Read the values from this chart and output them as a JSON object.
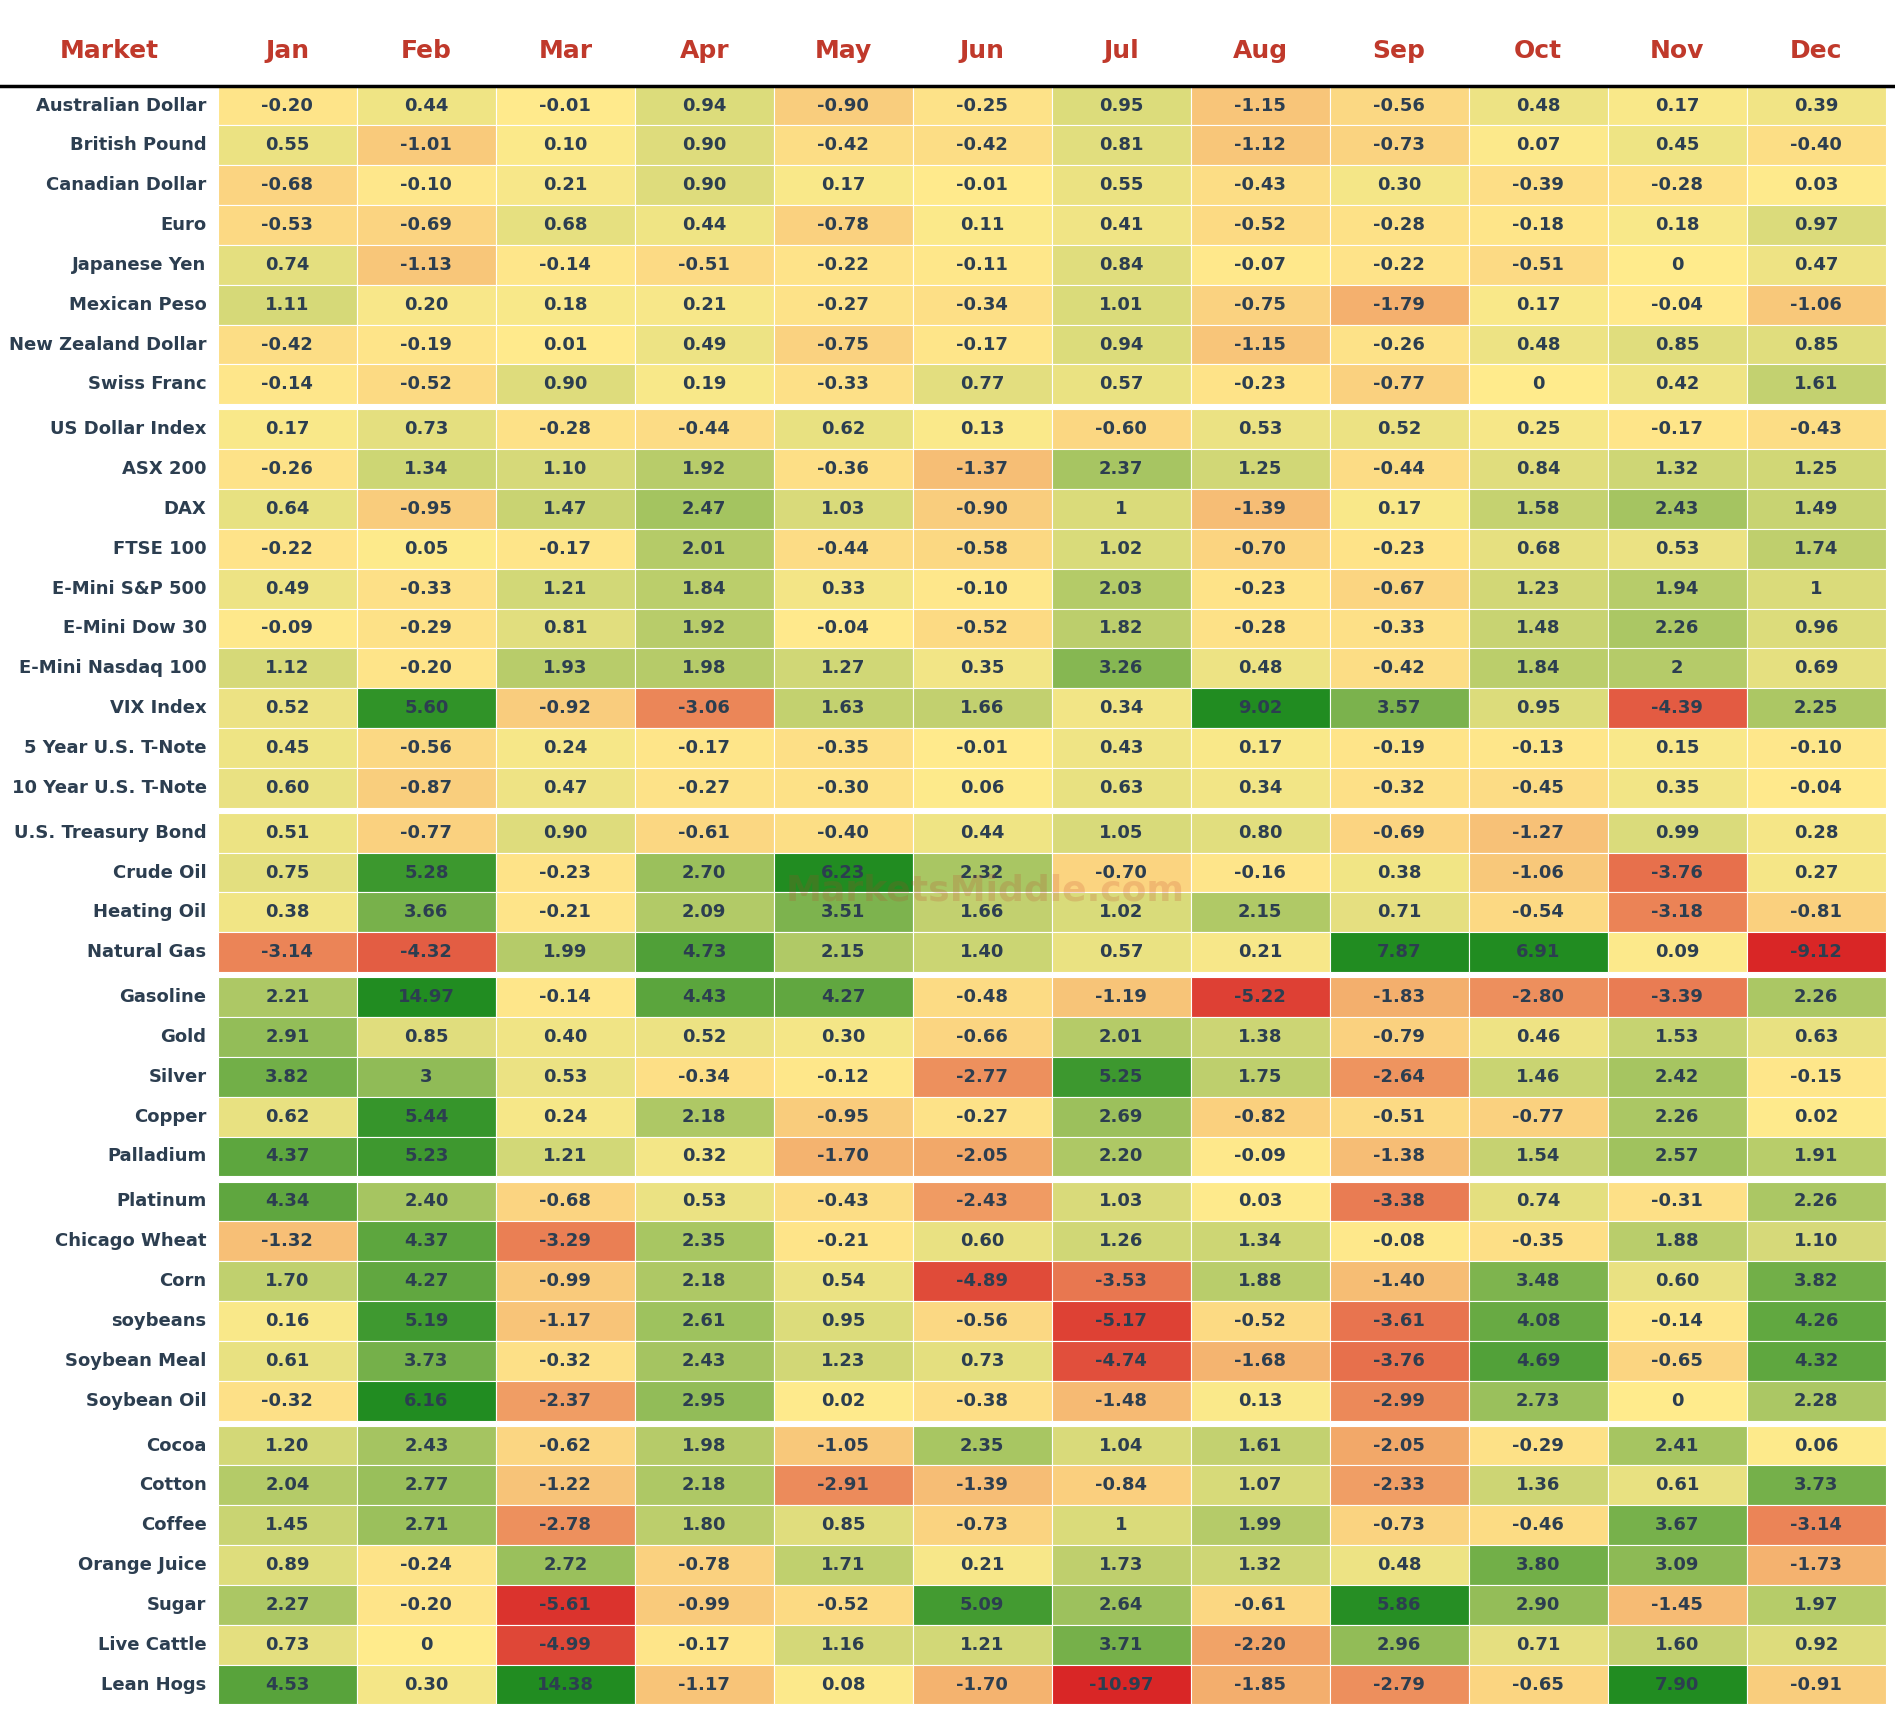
{
  "markets": [
    "Australian Dollar",
    "British Pound",
    "Canadian Dollar",
    "Euro",
    "Japanese Yen",
    "Mexican Peso",
    "New Zealand Dollar",
    "Swiss Franc",
    "US Dollar Index",
    "ASX 200",
    "DAX",
    "FTSE 100",
    "E-Mini S&P 500",
    "E-Mini Dow 30",
    "E-Mini Nasdaq 100",
    "VIX Index",
    "5 Year U.S. T-Note",
    "10 Year U.S. T-Note",
    "U.S. Treasury Bond",
    "Crude Oil",
    "Heating Oil",
    "Natural Gas",
    "Gasoline",
    "Gold",
    "Silver",
    "Copper",
    "Palladium",
    "Platinum",
    "Chicago Wheat",
    "Corn",
    "soybeans",
    "Soybean Meal",
    "Soybean Oil",
    "Cocoa",
    "Cotton",
    "Coffee",
    "Orange Juice",
    "Sugar",
    "Live Cattle",
    "Lean Hogs"
  ],
  "months": [
    "Jan",
    "Feb",
    "Mar",
    "Apr",
    "May",
    "Jun",
    "Jul",
    "Aug",
    "Sep",
    "Oct",
    "Nov",
    "Dec"
  ],
  "data": [
    [
      -0.2,
      0.44,
      -0.01,
      0.94,
      -0.9,
      -0.25,
      0.95,
      -1.15,
      -0.56,
      0.48,
      0.17,
      0.39
    ],
    [
      0.55,
      -1.01,
      0.1,
      0.9,
      -0.42,
      -0.42,
      0.81,
      -1.12,
      -0.73,
      0.07,
      0.45,
      -0.4
    ],
    [
      -0.68,
      -0.1,
      0.21,
      0.9,
      0.17,
      -0.01,
      0.55,
      -0.43,
      0.3,
      -0.39,
      -0.28,
      0.03
    ],
    [
      -0.53,
      -0.69,
      0.68,
      0.44,
      -0.78,
      0.11,
      0.41,
      -0.52,
      -0.28,
      -0.18,
      0.18,
      0.97
    ],
    [
      0.74,
      -1.13,
      -0.14,
      -0.51,
      -0.22,
      -0.11,
      0.84,
      -0.07,
      -0.22,
      -0.51,
      0.0,
      0.47
    ],
    [
      1.11,
      0.2,
      0.18,
      0.21,
      -0.27,
      -0.34,
      1.01,
      -0.75,
      -1.79,
      0.17,
      -0.04,
      -1.06
    ],
    [
      -0.42,
      -0.19,
      0.01,
      0.49,
      -0.75,
      -0.17,
      0.94,
      -1.15,
      -0.26,
      0.48,
      0.85,
      0.85
    ],
    [
      -0.14,
      -0.52,
      0.9,
      0.19,
      -0.33,
      0.77,
      0.57,
      -0.23,
      -0.77,
      0.0,
      0.42,
      1.61
    ],
    [
      0.17,
      0.73,
      -0.28,
      -0.44,
      0.62,
      0.13,
      -0.6,
      0.53,
      0.52,
      0.25,
      -0.17,
      -0.43
    ],
    [
      -0.26,
      1.34,
      1.1,
      1.92,
      -0.36,
      -1.37,
      2.37,
      1.25,
      -0.44,
      0.84,
      1.32,
      1.25
    ],
    [
      0.64,
      -0.95,
      1.47,
      2.47,
      1.03,
      -0.9,
      1.0,
      -1.39,
      0.17,
      1.58,
      2.43,
      1.49
    ],
    [
      -0.22,
      0.05,
      -0.17,
      2.01,
      -0.44,
      -0.58,
      1.02,
      -0.7,
      -0.23,
      0.68,
      0.53,
      1.74
    ],
    [
      0.49,
      -0.33,
      1.21,
      1.84,
      0.33,
      -0.1,
      2.03,
      -0.23,
      -0.67,
      1.23,
      1.94,
      1.0
    ],
    [
      -0.09,
      -0.29,
      0.81,
      1.92,
      -0.04,
      -0.52,
      1.82,
      -0.28,
      -0.33,
      1.48,
      2.26,
      0.96
    ],
    [
      1.12,
      -0.2,
      1.93,
      1.98,
      1.27,
      0.35,
      3.26,
      0.48,
      -0.42,
      1.84,
      2.0,
      0.69
    ],
    [
      0.52,
      5.6,
      -0.92,
      -3.06,
      1.63,
      1.66,
      0.34,
      9.02,
      3.57,
      0.95,
      -4.39,
      2.25
    ],
    [
      0.45,
      -0.56,
      0.24,
      -0.17,
      -0.35,
      -0.01,
      0.43,
      0.17,
      -0.19,
      -0.13,
      0.15,
      -0.1
    ],
    [
      0.6,
      -0.87,
      0.47,
      -0.27,
      -0.3,
      0.06,
      0.63,
      0.34,
      -0.32,
      -0.45,
      0.35,
      -0.04
    ],
    [
      0.51,
      -0.77,
      0.9,
      -0.61,
      -0.4,
      0.44,
      1.05,
      0.8,
      -0.69,
      -1.27,
      0.99,
      0.28
    ],
    [
      0.75,
      5.28,
      -0.23,
      2.7,
      6.23,
      2.32,
      -0.7,
      -0.16,
      0.38,
      -1.06,
      -3.76,
      0.27
    ],
    [
      0.38,
      3.66,
      -0.21,
      2.09,
      3.51,
      1.66,
      1.02,
      2.15,
      0.71,
      -0.54,
      -3.18,
      -0.81
    ],
    [
      -3.14,
      -4.32,
      1.99,
      4.73,
      2.15,
      1.4,
      0.57,
      0.21,
      7.87,
      6.91,
      0.09,
      -9.12
    ],
    [
      2.21,
      14.97,
      -0.14,
      4.43,
      4.27,
      -0.48,
      -1.19,
      -5.22,
      -1.83,
      -2.8,
      -3.39,
      2.26
    ],
    [
      2.91,
      0.85,
      0.4,
      0.52,
      0.3,
      -0.66,
      2.01,
      1.38,
      -0.79,
      0.46,
      1.53,
      0.63
    ],
    [
      3.82,
      3.0,
      0.53,
      -0.34,
      -0.12,
      -2.77,
      5.25,
      1.75,
      -2.64,
      1.46,
      2.42,
      -0.15
    ],
    [
      0.62,
      5.44,
      0.24,
      2.18,
      -0.95,
      -0.27,
      2.69,
      -0.82,
      -0.51,
      -0.77,
      2.26,
      0.02
    ],
    [
      4.37,
      5.23,
      1.21,
      0.32,
      -1.7,
      -2.05,
      2.2,
      -0.09,
      -1.38,
      1.54,
      2.57,
      1.91
    ],
    [
      4.34,
      2.4,
      -0.68,
      0.53,
      -0.43,
      -2.43,
      1.03,
      0.03,
      -3.38,
      0.74,
      -0.31,
      2.26
    ],
    [
      -1.32,
      4.37,
      -3.29,
      2.35,
      -0.21,
      0.6,
      1.26,
      1.34,
      -0.08,
      -0.35,
      1.88,
      1.1
    ],
    [
      1.7,
      4.27,
      -0.99,
      2.18,
      0.54,
      -4.89,
      -3.53,
      1.88,
      -1.4,
      3.48,
      0.6,
      3.82
    ],
    [
      0.16,
      5.19,
      -1.17,
      2.61,
      0.95,
      -0.56,
      -5.17,
      -0.52,
      -3.61,
      4.08,
      -0.14,
      4.26
    ],
    [
      0.61,
      3.73,
      -0.32,
      2.43,
      1.23,
      0.73,
      -4.74,
      -1.68,
      -3.76,
      4.69,
      -0.65,
      4.32
    ],
    [
      -0.32,
      6.16,
      -2.37,
      2.95,
      0.02,
      -0.38,
      -1.48,
      0.13,
      -2.99,
      2.73,
      0.0,
      2.28
    ],
    [
      1.2,
      2.43,
      -0.62,
      1.98,
      -1.05,
      2.35,
      1.04,
      1.61,
      -2.05,
      -0.29,
      2.41,
      0.06
    ],
    [
      2.04,
      2.77,
      -1.22,
      2.18,
      -2.91,
      -1.39,
      -0.84,
      1.07,
      -2.33,
      1.36,
      0.61,
      3.73
    ],
    [
      1.45,
      2.71,
      -2.78,
      1.8,
      0.85,
      -0.73,
      1.0,
      1.99,
      -0.73,
      -0.46,
      3.67,
      -3.14
    ],
    [
      0.89,
      -0.24,
      2.72,
      -0.78,
      1.71,
      0.21,
      1.73,
      1.32,
      0.48,
      3.8,
      3.09,
      -1.73
    ],
    [
      2.27,
      -0.2,
      -5.61,
      -0.99,
      -0.52,
      5.09,
      2.64,
      -0.61,
      5.86,
      2.9,
      -1.45,
      1.97
    ],
    [
      0.73,
      0,
      -4.99,
      -0.17,
      1.16,
      1.21,
      3.71,
      -2.2,
      2.96,
      0.71,
      1.6,
      0.92
    ],
    [
      4.53,
      0.3,
      14.38,
      -1.17,
      0.08,
      -1.7,
      -10.97,
      -1.85,
      -2.79,
      -0.65,
      7.9,
      -0.91
    ]
  ],
  "title": "Market",
  "header_text_color": "#c0392b",
  "row_label_color": "#2c3e50",
  "cell_text_color": "#2c3e50",
  "bg_color": "#ffffff",
  "separator_rows": [
    8,
    18,
    22,
    27,
    33
  ],
  "font_size_header": 18,
  "font_size_cell": 13,
  "font_size_row_label": 13
}
